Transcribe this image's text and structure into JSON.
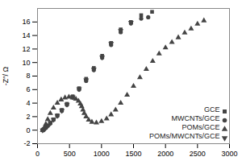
{
  "chart_data": {
    "type": "scatter",
    "title": "",
    "xlabel": "",
    "ylabel": "-Z′′/ Ω",
    "xlim": [
      0,
      3000
    ],
    "ylim": [
      -2,
      18
    ],
    "xticks": [
      0,
      500,
      1000,
      1500,
      2000,
      2500,
      3000
    ],
    "yticks": [
      -2,
      0,
      2,
      4,
      6,
      8,
      10,
      12,
      14,
      16
    ],
    "legend": "lower right",
    "series": [
      {
        "name": "GCE",
        "color": "#444444",
        "marker": "square",
        "x": [
          80,
          100,
          130,
          160,
          200,
          250,
          310,
          380,
          460,
          550,
          650,
          760,
          880,
          1010,
          1150,
          1300,
          1460,
          1620,
          1790
        ],
        "values": [
          0.0,
          0.15,
          0.4,
          0.7,
          1.1,
          1.6,
          2.2,
          3.0,
          3.9,
          5.0,
          6.2,
          7.6,
          9.2,
          11.0,
          12.9,
          14.9,
          16.0,
          17.0,
          17.5
        ]
      },
      {
        "name": "MWCNTs/GCE",
        "color": "#444444",
        "marker": "circle",
        "x": [
          80,
          100,
          130,
          160,
          200,
          250,
          310,
          380,
          460,
          550,
          650,
          760,
          880,
          1010,
          1150,
          1300,
          1460,
          1620,
          1730
        ],
        "values": [
          0.0,
          0.1,
          0.35,
          0.65,
          1.0,
          1.55,
          2.1,
          2.85,
          3.75,
          4.85,
          6.0,
          7.3,
          8.9,
          10.7,
          12.6,
          14.5,
          15.8,
          16.5,
          16.7
        ]
      },
      {
        "name": "POMs/GCE",
        "color": "#444444",
        "marker": "triangle-up",
        "x": [
          80,
          100,
          130,
          160,
          200,
          250,
          310,
          370,
          430,
          490,
          550,
          600,
          640,
          670,
          690,
          710,
          730,
          760,
          800,
          850,
          920,
          1000,
          1080,
          1150,
          1220,
          1300,
          1400,
          1500,
          1600,
          1700,
          1800,
          1900,
          2000,
          2100,
          2200,
          2300,
          2400,
          2500,
          2600
        ],
        "values": [
          0.0,
          0.3,
          0.9,
          1.6,
          2.5,
          3.3,
          4.0,
          4.5,
          4.8,
          4.9,
          4.8,
          4.6,
          4.3,
          3.9,
          3.5,
          3.0,
          2.5,
          2.0,
          1.5,
          1.2,
          1.1,
          1.3,
          1.7,
          2.3,
          3.0,
          4.0,
          5.2,
          6.5,
          7.8,
          9.0,
          10.2,
          11.3,
          12.2,
          13.0,
          13.7,
          14.4,
          15.0,
          15.7,
          16.2
        ]
      },
      {
        "name": "POMs/MWCNTs/GCE",
        "color": "#444444",
        "marker": "triangle-down",
        "x": [
          80,
          100,
          130,
          160,
          200,
          250,
          310,
          380,
          460,
          550,
          650,
          760,
          880,
          1010,
          1150,
          1300,
          1460
        ],
        "values": [
          0.0,
          0.12,
          0.38,
          0.68,
          1.05,
          1.58,
          2.15,
          2.9,
          3.8,
          4.9,
          6.1,
          7.4,
          9.0,
          10.8,
          12.8,
          14.7,
          15.9
        ]
      }
    ]
  }
}
